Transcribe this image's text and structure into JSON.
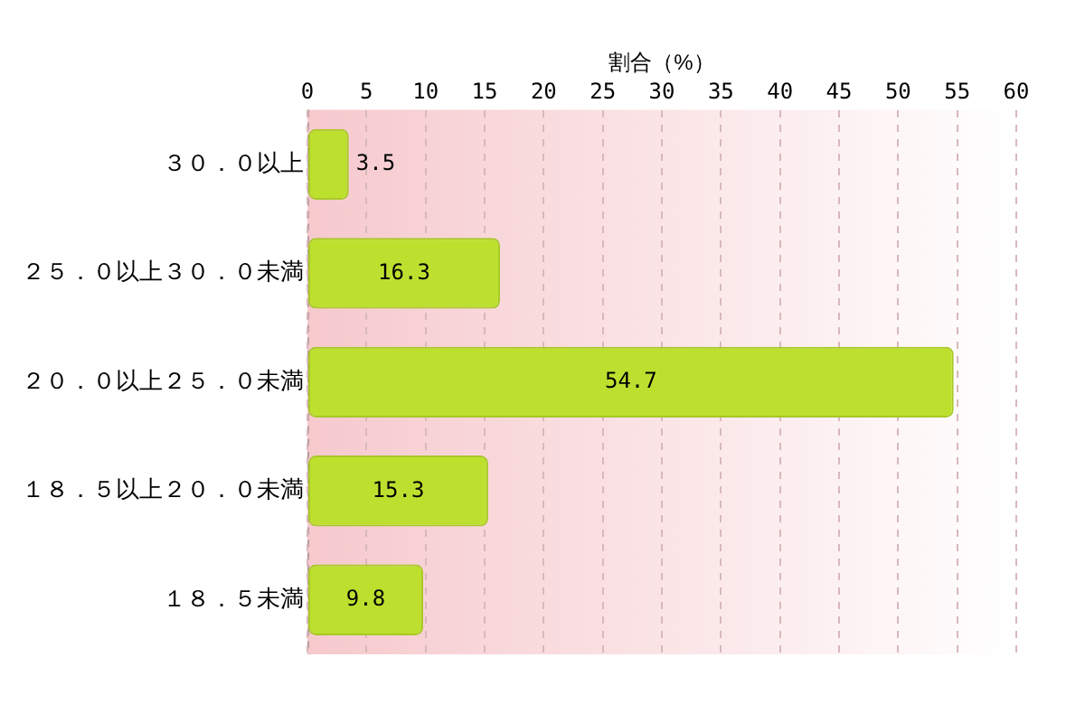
{
  "chart_data": {
    "type": "bar",
    "orientation": "horizontal",
    "xlabel": "割合（%）",
    "categories": [
      "３０．０以上",
      "２５．０以上３０．０未満",
      "２０．０以上２５．０未満",
      "１８．５以上２０．０未満",
      "１８．５未満"
    ],
    "values": [
      3.5,
      16.3,
      54.7,
      15.3,
      9.8
    ],
    "color": "#bde02e",
    "xlim": [
      0,
      60
    ],
    "xticks": [
      0,
      5,
      10,
      15,
      20,
      25,
      30,
      35,
      40,
      45,
      50,
      55,
      60
    ],
    "grid": "x",
    "data_labels": true
  }
}
